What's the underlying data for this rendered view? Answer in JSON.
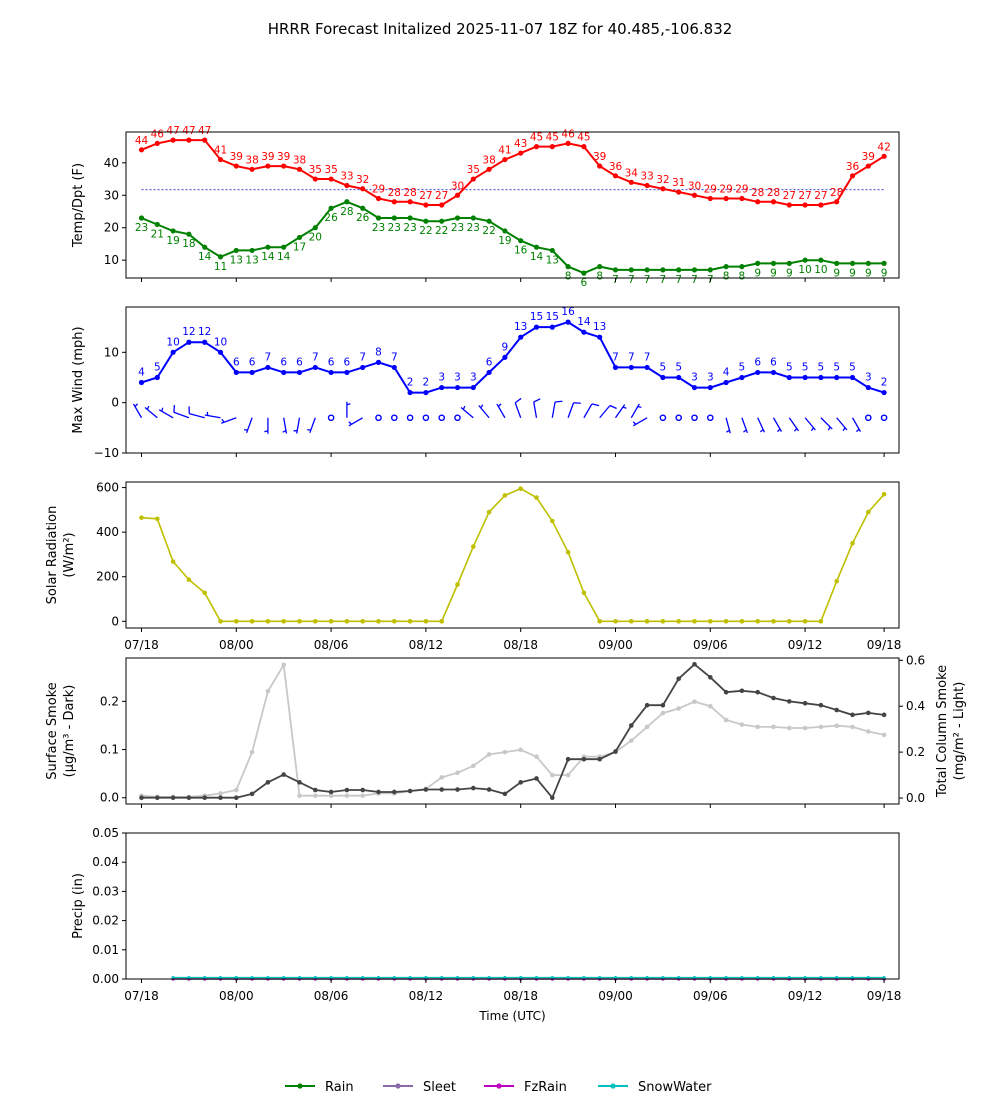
{
  "chart_data": {
    "title": "HRRR Forecast Initalized 2025-11-07 18Z for 40.485,-106.832",
    "x_tick_labels": [
      "07/18",
      "08/00",
      "08/06",
      "08/12",
      "08/18",
      "09/00",
      "09/06",
      "09/12",
      "09/18"
    ],
    "xlabel": "Time (UTC)",
    "panels": [
      {
        "type": "line",
        "name": "temp-dewpoint",
        "ylabel": "Temp/Dpt (F)",
        "yticks": [
          "10",
          "20",
          "30",
          "40"
        ],
        "ylim": [
          4.5,
          49.5
        ],
        "freezing_line_value": 31.7,
        "series": [
          {
            "name": "Temperature",
            "color": "#ff0000",
            "values": [
              44,
              46,
              47,
              47,
              47,
              41,
              39,
              38,
              39,
              39,
              38,
              35,
              35,
              33,
              32,
              29,
              28,
              28,
              27,
              27,
              30,
              35,
              38,
              41,
              43,
              45,
              45,
              46,
              45,
              39,
              36,
              34,
              33,
              32,
              31,
              30,
              29,
              29,
              29,
              28,
              28,
              27,
              27,
              27,
              28,
              36,
              39,
              42
            ]
          },
          {
            "name": "Dewpoint",
            "color": "#008000",
            "values": [
              23,
              21,
              19,
              18,
              14,
              11,
              13,
              13,
              14,
              14,
              17,
              20,
              26,
              28,
              26,
              23,
              23,
              23,
              22,
              22,
              23,
              23,
              22,
              19,
              16,
              14,
              13,
              8,
              6,
              8,
              7,
              7,
              7,
              7,
              7,
              7,
              7,
              8,
              8,
              9,
              9,
              9,
              10,
              10,
              9,
              9,
              9,
              9
            ]
          }
        ]
      },
      {
        "type": "line",
        "name": "max-wind",
        "ylabel": "Max Wind (mph)",
        "yticks": [
          "−10",
          "0",
          "10"
        ],
        "ylim": [
          -10,
          19
        ],
        "series": [
          {
            "name": "Max Wind",
            "color": "#0000ff",
            "values": [
              4,
              5,
              10,
              12,
              12,
              10,
              6,
              6,
              7,
              6,
              6,
              7,
              6,
              6,
              7,
              8,
              7,
              2,
              2,
              3,
              3,
              3,
              6,
              9,
              13,
              15,
              15,
              16,
              14,
              13,
              7,
              7,
              7,
              5,
              5,
              3,
              3,
              4,
              5,
              6,
              6,
              5,
              5,
              5,
              5,
              5,
              3,
              2
            ]
          }
        ],
        "wind_barbs": {
          "direction_deg": [
            330,
            310,
            300,
            290,
            285,
            280,
            250,
            200,
            180,
            170,
            190,
            200,
            0,
            0,
            240,
            0,
            0,
            0,
            0,
            0,
            0,
            310,
            320,
            330,
            340,
            350,
            10,
            20,
            30,
            40,
            35,
            30,
            240,
            0,
            0,
            0,
            0,
            165,
            160,
            155,
            150,
            145,
            140,
            135,
            140,
            150,
            0,
            0
          ],
          "speed_mph": [
            4,
            5,
            10,
            12,
            12,
            10,
            6,
            6,
            7,
            6,
            6,
            7,
            0,
            6,
            7,
            0,
            0,
            0,
            0,
            0,
            0,
            3,
            6,
            9,
            13,
            15,
            15,
            16,
            14,
            13,
            7,
            7,
            7,
            0,
            0,
            0,
            0,
            4,
            5,
            6,
            6,
            5,
            5,
            5,
            5,
            5,
            0,
            0
          ]
        }
      },
      {
        "type": "line",
        "name": "solar-radiation",
        "ylabel": "Solar Radiation",
        "ylabel_units": "(W/m²)",
        "yticks": [
          "0",
          "200",
          "400",
          "600"
        ],
        "ylim": [
          -30,
          625
        ],
        "series": [
          {
            "name": "Solar Radiation",
            "color": "#bfbf00",
            "values": [
              465,
              460,
              268,
              187,
              128,
              0,
              0,
              0,
              0,
              0,
              0,
              0,
              0,
              0,
              0,
              0,
              0,
              0,
              0,
              0,
              165,
              335,
              490,
              565,
              595,
              555,
              450,
              310,
              128,
              0,
              0,
              0,
              0,
              0,
              0,
              0,
              0,
              0,
              0,
              0,
              0,
              0,
              0,
              0,
              180,
              350,
              490,
              570
            ]
          }
        ]
      },
      {
        "type": "line",
        "name": "smoke",
        "ylabel": "Surface Smoke",
        "ylabel_units": "(μg/m³ - Dark)",
        "yticks": [
          "0.0",
          "0.1",
          "0.2"
        ],
        "ylim": [
          -0.013,
          0.29
        ],
        "ylabel_right": "Total Column Smoke",
        "ylabel_right_units": "(mg/m² - Light)",
        "yticks_right": [
          "0.0",
          "0.2",
          "0.4",
          "0.6"
        ],
        "ylim_right": [
          -0.026,
          0.61
        ],
        "series": [
          {
            "name": "Surface Smoke",
            "color": "#444444",
            "axis": "left",
            "values": [
              0,
              0,
              0,
              0,
              0,
              0,
              0,
              0.008,
              0.032,
              0.048,
              0.032,
              0.016,
              0.012,
              0.016,
              0.016,
              0.012,
              0.012,
              0.014,
              0.017,
              0.017,
              0.017,
              0.02,
              0.017,
              0.008,
              0.032,
              0.04,
              0,
              0.08,
              0.08,
              0.08,
              0.096,
              0.15,
              0.192,
              0.192,
              0.247,
              0.277,
              0.25,
              0.219,
              0.222,
              0.219,
              0.207,
              0.2,
              0.196,
              0.192,
              0.182,
              0.172,
              0.176,
              0.172
            ]
          },
          {
            "name": "Total Column Smoke",
            "color": "#c8c8c8",
            "axis": "right",
            "values": [
              0.01,
              0.005,
              0.005,
              0.005,
              0.01,
              0.02,
              0.035,
              0.2,
              0.465,
              0.58,
              0.01,
              0.01,
              0.01,
              0.01,
              0.01,
              0.02,
              0.02,
              0.03,
              0.04,
              0.09,
              0.11,
              0.14,
              0.19,
              0.2,
              0.21,
              0.18,
              0.1,
              0.1,
              0.18,
              0.18,
              0.2,
              0.25,
              0.31,
              0.37,
              0.39,
              0.42,
              0.4,
              0.34,
              0.32,
              0.31,
              0.31,
              0.305,
              0.305,
              0.31,
              0.315,
              0.31,
              0.29,
              0.275
            ]
          }
        ]
      },
      {
        "type": "line",
        "name": "precip",
        "ylabel": "Precip (in)",
        "yticks": [
          "0.00",
          "0.01",
          "0.02",
          "0.03",
          "0.04",
          "0.05"
        ],
        "ylim": [
          0,
          0.05
        ],
        "series": [
          {
            "name": "Rain",
            "color": "#008000",
            "values_all": 0
          },
          {
            "name": "Sleet",
            "color": "#8a6aa8",
            "values_all": 0
          },
          {
            "name": "FzRain",
            "color": "#bf00bf",
            "values_all": 0
          },
          {
            "name": "SnowWater",
            "color": "#00bfbf",
            "values_all": 0.0005
          }
        ]
      }
    ],
    "legend": [
      {
        "label": "Rain",
        "color": "#008000"
      },
      {
        "label": "Sleet",
        "color": "#8a6aa8"
      },
      {
        "label": "FzRain",
        "color": "#bf00bf"
      },
      {
        "label": "SnowWater",
        "color": "#00bfbf"
      }
    ]
  }
}
